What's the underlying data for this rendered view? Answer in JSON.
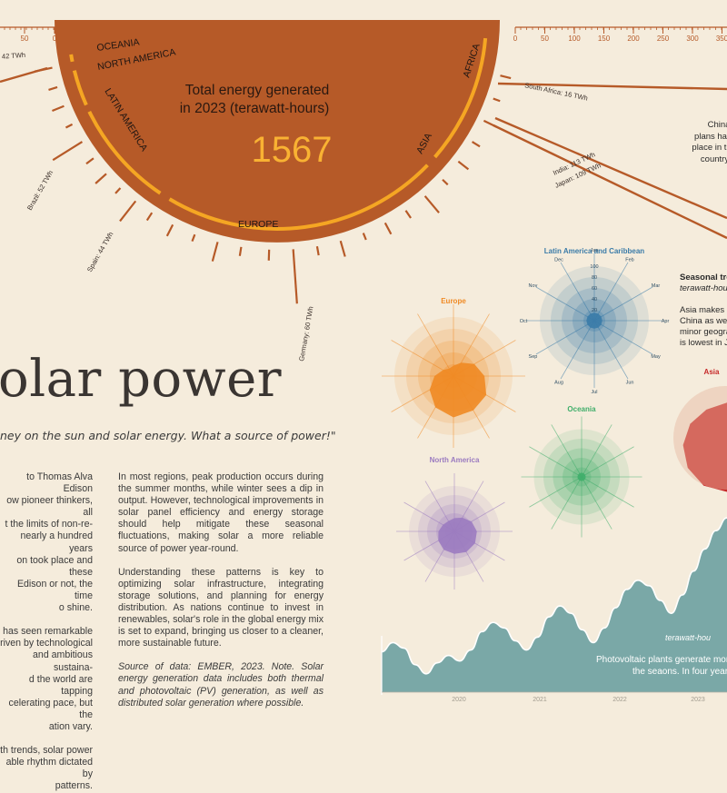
{
  "headline": "olar power",
  "quote": "ney on the sun and solar energy. What a source of power!\"",
  "body_left": [
    "to Thomas Alva Edison",
    "ow pioneer thinkers, all",
    "t the limits of non-re-",
    "nearly a hundred years",
    "on took place and these",
    "Edison or not, the time",
    "o shine.",
    "",
    "has seen remarkable",
    "riven by technological",
    "and ambitious sustaina-",
    "d the world are tapping",
    "celerating pace, but the",
    "ation vary.",
    "",
    "th trends, solar power",
    "able rhythm dictated by",
    "patterns."
  ],
  "body_mid": {
    "p1": "In most regions, peak production occurs during the summer months, while winter sees a dip in output. However, technological improvements in solar panel efficiency and energy storage should help mitigate these seasonal fluctuations, making solar a more reliable source of power year-round.",
    "p2": "Understanding these patterns is key to optimizing solar infrastructure, integrating storage solutions, and planning for energy distribution. As nations continue to invest in renewables, solar's role in the global energy mix is set to expand, bringing us closer to a cleaner, more sustainable future.",
    "source": "Source of data: EMBER, 2023. Note. Solar energy generation data includes both thermal and photovoltaic (PV) generation, as well as distributed solar generation where possible."
  },
  "side_note": {
    "title": "Seasonal tre",
    "unit": "terawatt-hou",
    "lines": [
      "Asia makes u",
      "China as well",
      "minor geogra",
      "is lowest in Ja"
    ]
  },
  "china_note": [
    "China's",
    "plans have",
    "place in the",
    "country p"
  ],
  "area_caption": {
    "unit": "terawatt-hou",
    "lines": [
      "Photovoltaic plants generate more e",
      "the seaons. In four years, g"
    ]
  },
  "colors": {
    "background": "#f5ecdc",
    "sun": "#b65a28",
    "sun_ring": "#f5a623",
    "total": "#f9b233",
    "europe": "#f08a24",
    "latam": "#3a7ba8",
    "north_america": "#9b7bc0",
    "oceania": "#3fae6a",
    "asia": "#c62828",
    "area": "#7aa8a7",
    "area_line": "#ffffff"
  },
  "chart_data": [
    {
      "type": "pie",
      "title": "Total energy generated in 2023 (terawatt-hours)",
      "title_lines": [
        "Total energy generated",
        "in 2023 (terawatt-hours)"
      ],
      "total": "1567",
      "region_labels": [
        "OCEANIA",
        "NORTH AMERICA",
        "LATIN AMERICA",
        "EUROPE",
        "ASIA",
        "AFRICA"
      ]
    },
    {
      "type": "bar",
      "title": "",
      "labels": [
        "South Africa: 16 TWh",
        "India: 113 TWh",
        "Japan: 109 TWh",
        "Brazil: 52 TWh",
        "Spain: 44 TWh",
        "Germany: 60 TWh",
        ": 42 TWh"
      ],
      "scale_left_ticks": [
        "50",
        "0"
      ],
      "scale_right_ticks": [
        "0",
        "50",
        "100",
        "150",
        "200",
        "250",
        "300",
        "350"
      ]
    },
    {
      "type": "area",
      "title": "Seasonal trends",
      "radial": true,
      "months": [
        "Jan",
        "Feb",
        "Mar",
        "Apr",
        "May",
        "Jun",
        "Jul",
        "Aug",
        "Sep",
        "Oct",
        "Nov",
        "Dec"
      ],
      "ring_ticks": [
        "20",
        "40",
        "60",
        "80",
        "100"
      ],
      "series": [
        {
          "name": "Europe",
          "values": [
            6,
            9,
            14,
            18,
            22,
            23,
            24,
            21,
            16,
            11,
            7,
            5
          ]
        },
        {
          "name": "Latin America and Caribbean",
          "values": [
            5,
            5,
            5,
            5,
            5,
            5,
            5,
            5,
            5,
            5,
            5,
            5
          ]
        },
        {
          "name": "Oceania",
          "values": [
            3,
            3,
            3,
            3,
            3,
            3,
            3,
            3,
            3,
            3,
            3,
            3
          ]
        },
        {
          "name": "North America",
          "values": [
            10,
            12,
            15,
            17,
            18,
            18,
            17,
            16,
            14,
            12,
            10,
            9
          ]
        },
        {
          "name": "Asia",
          "values": [
            60,
            64,
            68,
            70,
            70,
            68,
            66,
            66,
            64,
            62,
            60,
            58
          ]
        }
      ]
    },
    {
      "type": "area",
      "title": "",
      "x_ticks": [
        "2020",
        "2021",
        "2022",
        "2023"
      ],
      "values": [
        22,
        27,
        24,
        15,
        10,
        16,
        20,
        17,
        23,
        33,
        38,
        35,
        28,
        23,
        30,
        41,
        47,
        43,
        34,
        27,
        35,
        46,
        56,
        61,
        58,
        50,
        43,
        53,
        66,
        78,
        88,
        95
      ]
    }
  ]
}
